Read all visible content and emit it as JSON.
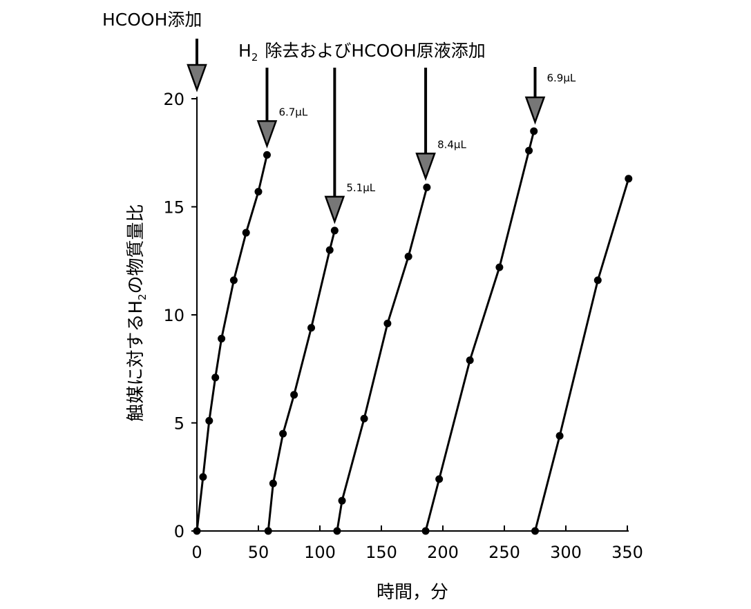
{
  "chart_data": {
    "type": "line",
    "xlabel": "時間，分",
    "ylabel": "触媒に対するH2の物質量比",
    "ylabel_parts": {
      "before": "触媒に対する",
      "base": "H",
      "sub": "2",
      "after": "の物質量比"
    },
    "xlim": [
      0,
      350
    ],
    "ylim": [
      0,
      20
    ],
    "x_ticks": [
      0,
      50,
      100,
      150,
      200,
      250,
      300,
      350
    ],
    "y_ticks": [
      0,
      5,
      10,
      15,
      20
    ],
    "grid": false,
    "legend": "none",
    "marker": "filled-circle",
    "line_color": "#000000",
    "series": [
      {
        "x": [
          0,
          5,
          10,
          15,
          20,
          30,
          40,
          50,
          57
        ],
        "y": [
          0,
          2.5,
          5.1,
          7.1,
          8.9,
          11.6,
          13.8,
          15.7,
          17.4
        ]
      },
      {
        "x": [
          58,
          62,
          70,
          79,
          93,
          108,
          112
        ],
        "y": [
          0,
          2.2,
          4.5,
          6.3,
          9.4,
          13.0,
          13.9
        ]
      },
      {
        "x": [
          114,
          118,
          136,
          155,
          172,
          187
        ],
        "y": [
          0,
          1.4,
          5.2,
          9.6,
          12.7,
          15.9
        ]
      },
      {
        "x": [
          186,
          197,
          222,
          246,
          270,
          274
        ],
        "y": [
          0,
          2.4,
          7.9,
          12.2,
          17.6,
          18.5
        ]
      },
      {
        "x": [
          275,
          295,
          326,
          351
        ],
        "y": [
          0,
          4.4,
          11.6,
          16.3
        ]
      }
    ],
    "annotations": {
      "first_addition": {
        "label": "HCOOH添加",
        "x": 0
      },
      "replenish_title": {
        "base": "H",
        "sub": "2",
        "rest": "除去およびHCOOH原液添加"
      },
      "arrows": [
        {
          "x": 57,
          "y": 17.4,
          "label": "6.7μL"
        },
        {
          "x": 112,
          "y": 13.9,
          "label": "5.1μL"
        },
        {
          "x": 186,
          "y": 15.9,
          "label": "8.4μL"
        },
        {
          "x": 275,
          "y": 18.5,
          "label": "6.9μL"
        }
      ]
    }
  }
}
